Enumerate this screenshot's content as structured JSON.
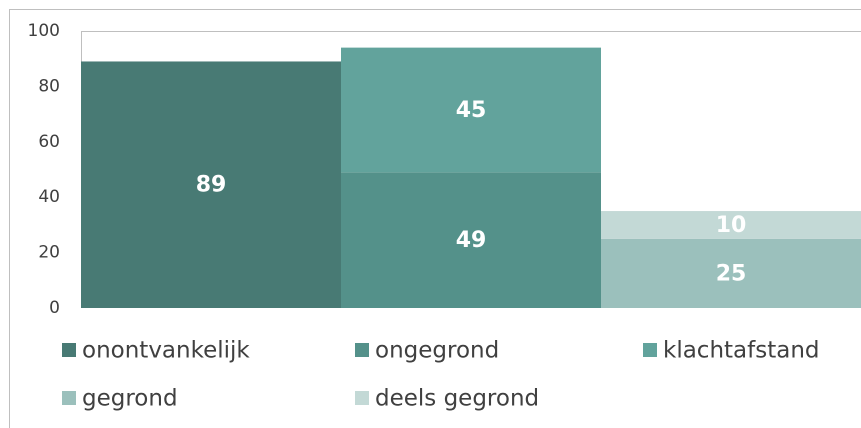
{
  "chart_data": {
    "type": "bar",
    "stacked": true,
    "categories": [
      null,
      null,
      null
    ],
    "series": [
      {
        "name": "onontvankelijk",
        "color": "#487a74",
        "values": [
          89,
          null,
          null
        ]
      },
      {
        "name": "ongegrond",
        "color": "#54918a",
        "values": [
          null,
          49,
          null
        ]
      },
      {
        "name": "klachtafstand",
        "color": "#62a39c",
        "values": [
          null,
          45,
          null
        ]
      },
      {
        "name": "gegrond",
        "color": "#9bc0bc",
        "values": [
          null,
          null,
          25
        ]
      },
      {
        "name": "deels gegrond",
        "color": "#c3d9d6",
        "values": [
          null,
          null,
          10
        ]
      }
    ],
    "ylim": [
      0,
      100
    ],
    "yticks": [
      0,
      20,
      40,
      60,
      80,
      100
    ],
    "grid": false,
    "legend": "bottom"
  }
}
